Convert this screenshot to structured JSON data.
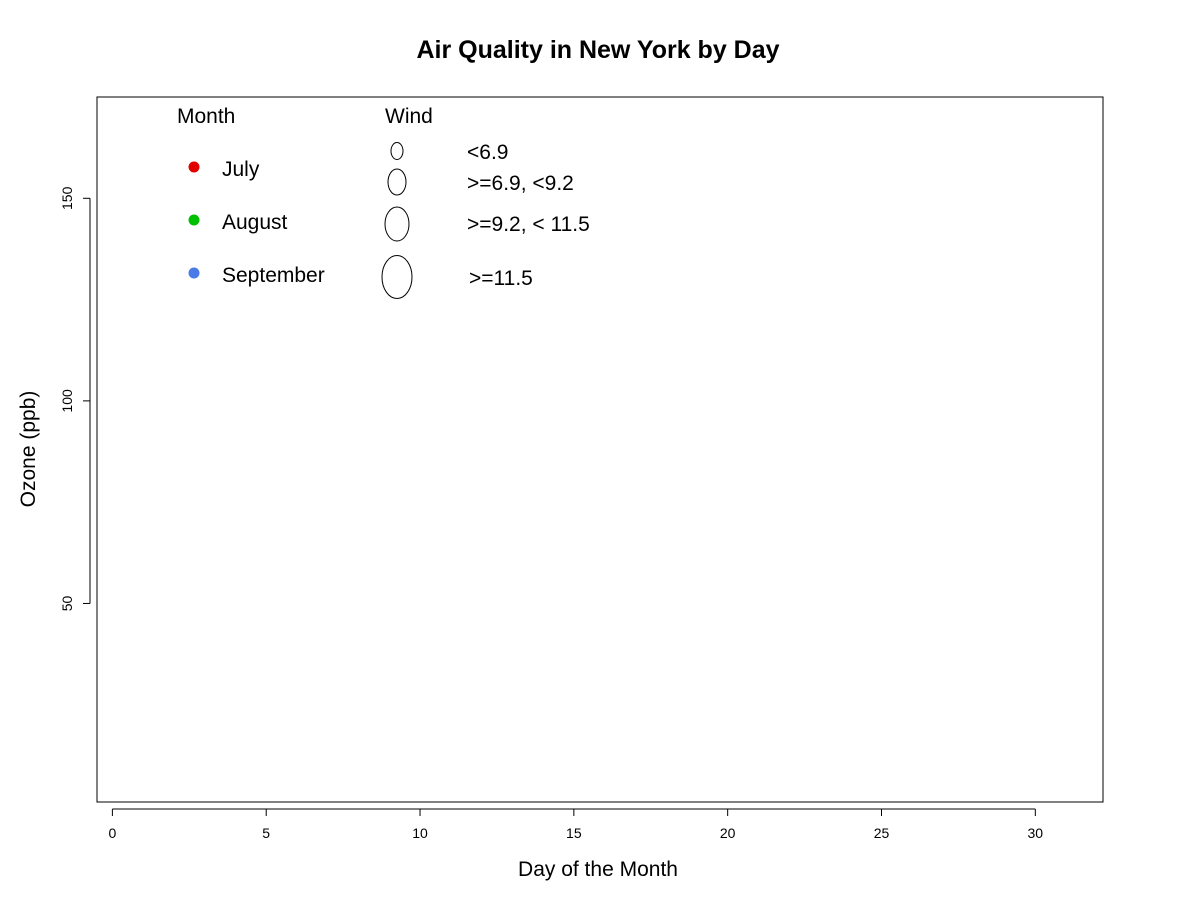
{
  "chart_data": {
    "type": "scatter",
    "title": "Air Quality in New York by Day",
    "xlabel": "Day of the Month",
    "ylabel": "Ozone (ppb)",
    "xlim": [
      -0.5,
      32.2
    ],
    "ylim": [
      1,
      175
    ],
    "x_ticks": [
      0,
      5,
      10,
      15,
      20,
      25,
      30
    ],
    "y_ticks": [
      50,
      100,
      150
    ],
    "grid": false,
    "legend_placement": "top-left",
    "month_legend": {
      "title": "Month",
      "items": [
        {
          "label": "July",
          "color": "#e00000"
        },
        {
          "label": "August",
          "color": "#00c000"
        },
        {
          "label": "September",
          "color": "#4a7ae8"
        }
      ]
    },
    "wind_legend": {
      "title": "Wind",
      "items": [
        {
          "label": "<6.9"
        },
        {
          "label": ">=6.9, <9.2"
        },
        {
          "label": ">=9.2, < 11.5"
        },
        {
          "label": ">=11.5"
        }
      ]
    },
    "series": []
  }
}
